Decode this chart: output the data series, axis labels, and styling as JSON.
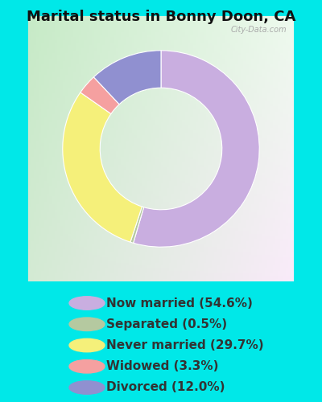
{
  "title": "Marital status in Bonny Doon, CA",
  "title_fontsize": 13,
  "slices": [
    54.6,
    0.5,
    29.7,
    3.3,
    12.0
  ],
  "labels": [
    "Now married (54.6%)",
    "Separated (0.5%)",
    "Never married (29.7%)",
    "Widowed (3.3%)",
    "Divorced (12.0%)"
  ],
  "colors": [
    "#c9aee0",
    "#b5c9a0",
    "#f5f07a",
    "#f5a0a0",
    "#9090d0"
  ],
  "bg_color_tl": "#c8e8c8",
  "bg_color_br": "#d8f8e8",
  "outer_bg": "#00e8e8",
  "donut_width": 0.38,
  "legend_fontsize": 11,
  "wedge_edge_color": "white",
  "watermark": "City-Data.com",
  "watermark_color": "#aaaaaa",
  "text_color": "#333333"
}
